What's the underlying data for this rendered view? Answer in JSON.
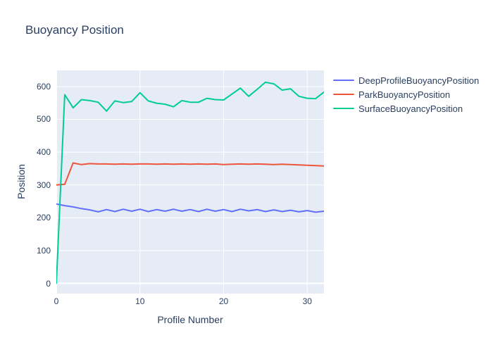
{
  "title": "Buoyancy Position",
  "colors": {
    "text": "#2a3f5f",
    "paper_bg": "#ffffff",
    "plot_bg": "#e5ecf6",
    "grid": "#ffffff",
    "series_deep": "#636efa",
    "series_park": "#ef553b",
    "series_surface": "#00cc96"
  },
  "chart_data": {
    "type": "line",
    "title": "Buoyancy Position",
    "xlabel": "Profile Number",
    "ylabel": "Position",
    "xlim": [
      0,
      32
    ],
    "ylim": [
      -31,
      649
    ],
    "xticks": [
      0,
      10,
      20,
      30
    ],
    "yticks": [
      0,
      100,
      200,
      300,
      400,
      500,
      600
    ],
    "grid": true,
    "legend_position": "right",
    "x": [
      0,
      1,
      2,
      3,
      4,
      5,
      6,
      7,
      8,
      9,
      10,
      11,
      12,
      13,
      14,
      15,
      16,
      17,
      18,
      19,
      20,
      21,
      22,
      23,
      24,
      25,
      26,
      27,
      28,
      29,
      30,
      31,
      32
    ],
    "series": [
      {
        "name": "DeepProfileBuoyancyPosition",
        "color": "#636efa",
        "values": [
          242,
          237,
          233,
          228,
          224,
          218,
          225,
          219,
          226,
          220,
          226,
          219,
          225,
          220,
          226,
          220,
          225,
          219,
          226,
          220,
          225,
          219,
          226,
          221,
          225,
          219,
          224,
          219,
          223,
          218,
          222,
          217,
          220
        ]
      },
      {
        "name": "ParkBuoyancyPosition",
        "color": "#ef553b",
        "values": [
          300,
          302,
          367,
          362,
          365,
          364,
          364,
          363,
          364,
          363,
          364,
          364,
          363,
          364,
          363,
          364,
          363,
          364,
          363,
          364,
          362,
          363,
          364,
          363,
          364,
          363,
          362,
          363,
          362,
          361,
          360,
          359,
          358
        ]
      },
      {
        "name": "SurfaceBuoyancyPosition",
        "color": "#00cc96",
        "values": [
          0,
          575,
          535,
          560,
          557,
          552,
          525,
          556,
          551,
          554,
          581,
          556,
          549,
          546,
          538,
          557,
          552,
          552,
          564,
          560,
          559,
          577,
          595,
          570,
          591,
          613,
          608,
          589,
          593,
          570,
          564,
          563,
          583
        ]
      }
    ]
  }
}
